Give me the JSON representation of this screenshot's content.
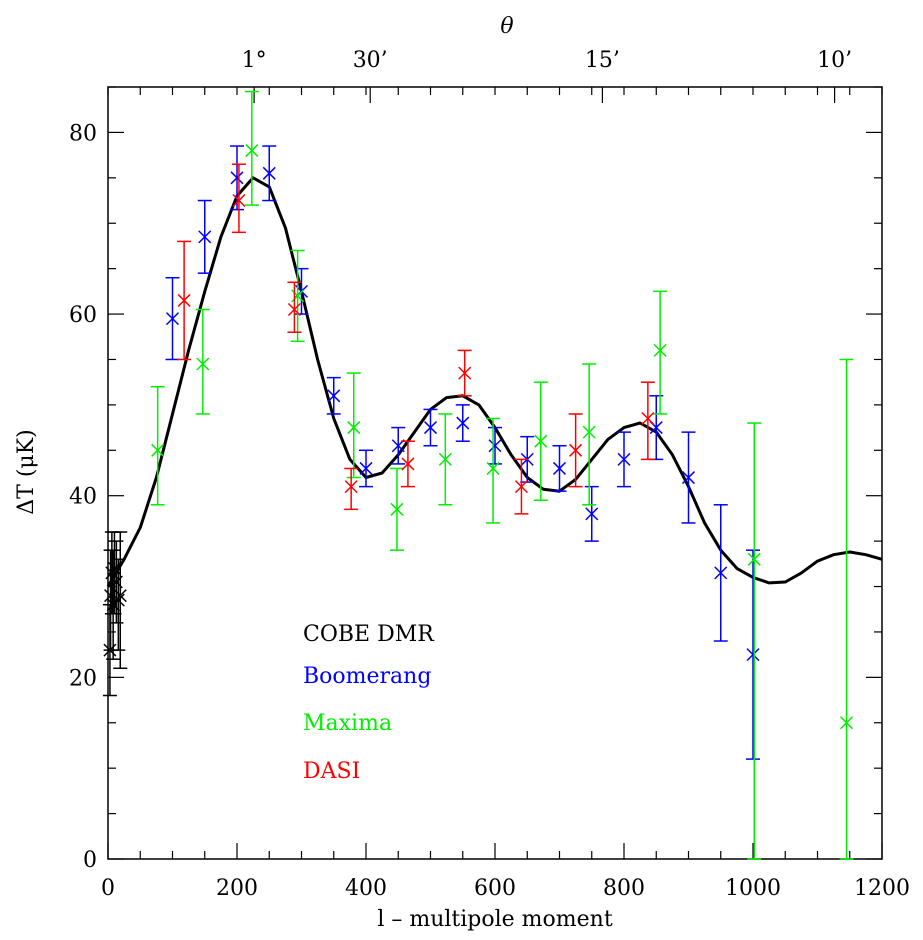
{
  "chart_data": {
    "type": "scatter",
    "xlabel": "l  – multipole moment",
    "ylabel": "ΔT (μK)",
    "top_axis_label": "θ",
    "xlim": [
      0,
      1200
    ],
    "ylim": [
      0,
      85
    ],
    "x_ticks": [
      0,
      200,
      400,
      600,
      800,
      1000,
      1200
    ],
    "x_tick_labels": [
      "0",
      "200",
      "400",
      "600",
      "800",
      "1000",
      "1200"
    ],
    "y_ticks": [
      0,
      20,
      40,
      60,
      80
    ],
    "y_tick_labels": [
      "0",
      "20",
      "40",
      "60",
      "80"
    ],
    "top_ticks": [
      {
        "label": "1°",
        "l": 180
      },
      {
        "label": "30’",
        "l": 360
      },
      {
        "label": "15’",
        "l": 720
      },
      {
        "label": "10’",
        "l": 1080
      }
    ],
    "grid": false,
    "legend_position": "lower-left",
    "series": [
      {
        "name": "COBE DMR",
        "color": "#000000",
        "points": [
          {
            "x": 3,
            "y": 23.0,
            "lo": 18.0,
            "hi": 28.0
          },
          {
            "x": 4,
            "y": 29.0,
            "lo": 23.0,
            "hi": 34.0
          },
          {
            "x": 6,
            "y": 31.5,
            "lo": 27.0,
            "hi": 36.0
          },
          {
            "x": 8,
            "y": 28.0,
            "lo": 22.0,
            "hi": 34.0
          },
          {
            "x": 10,
            "y": 32.0,
            "lo": 27.0,
            "hi": 36.0
          },
          {
            "x": 13,
            "y": 30.5,
            "lo": 26.0,
            "hi": 35.0
          },
          {
            "x": 16,
            "y": 28.5,
            "lo": 23.0,
            "hi": 33.0
          },
          {
            "x": 19,
            "y": 29.0,
            "lo": 21.0,
            "hi": 36.0
          }
        ]
      },
      {
        "name": "Boomerang",
        "color": "#0000ff",
        "points": [
          {
            "x": 100,
            "y": 59.5,
            "lo": 55.0,
            "hi": 64.0
          },
          {
            "x": 150,
            "y": 68.5,
            "lo": 64.5,
            "hi": 72.5
          },
          {
            "x": 200,
            "y": 75.0,
            "lo": 71.5,
            "hi": 78.5
          },
          {
            "x": 250,
            "y": 75.5,
            "lo": 72.5,
            "hi": 78.5
          },
          {
            "x": 300,
            "y": 62.5,
            "lo": 60.0,
            "hi": 65.0
          },
          {
            "x": 350,
            "y": 51.0,
            "lo": 49.0,
            "hi": 53.0
          },
          {
            "x": 400,
            "y": 43.0,
            "lo": 41.0,
            "hi": 45.0
          },
          {
            "x": 450,
            "y": 45.5,
            "lo": 43.5,
            "hi": 47.5
          },
          {
            "x": 500,
            "y": 47.5,
            "lo": 45.5,
            "hi": 49.5
          },
          {
            "x": 550,
            "y": 48.0,
            "lo": 46.0,
            "hi": 50.0
          },
          {
            "x": 600,
            "y": 45.5,
            "lo": 43.5,
            "hi": 47.5
          },
          {
            "x": 650,
            "y": 44.0,
            "lo": 41.5,
            "hi": 46.5
          },
          {
            "x": 700,
            "y": 43.0,
            "lo": 40.5,
            "hi": 45.5
          },
          {
            "x": 750,
            "y": 38.0,
            "lo": 35.0,
            "hi": 41.0
          },
          {
            "x": 800,
            "y": 44.0,
            "lo": 41.0,
            "hi": 47.0
          },
          {
            "x": 850,
            "y": 47.5,
            "lo": 44.0,
            "hi": 51.0
          },
          {
            "x": 900,
            "y": 42.0,
            "lo": 37.0,
            "hi": 47.0
          },
          {
            "x": 950,
            "y": 31.5,
            "lo": 24.0,
            "hi": 39.0
          },
          {
            "x": 1000,
            "y": 22.5,
            "lo": 11.0,
            "hi": 34.0
          }
        ]
      },
      {
        "name": "Maxima",
        "color": "#00ee00",
        "points": [
          {
            "x": 77,
            "y": 45.0,
            "lo": 39.0,
            "hi": 52.0
          },
          {
            "x": 147,
            "y": 54.5,
            "lo": 49.0,
            "hi": 60.5
          },
          {
            "x": 223,
            "y": 78.0,
            "lo": 72.0,
            "hi": 84.5
          },
          {
            "x": 294,
            "y": 62.0,
            "lo": 57.0,
            "hi": 67.0
          },
          {
            "x": 381,
            "y": 47.5,
            "lo": 42.0,
            "hi": 53.5
          },
          {
            "x": 448,
            "y": 38.5,
            "lo": 34.0,
            "hi": 43.0
          },
          {
            "x": 523,
            "y": 44.0,
            "lo": 39.0,
            "hi": 49.0
          },
          {
            "x": 597,
            "y": 43.0,
            "lo": 37.0,
            "hi": 48.5
          },
          {
            "x": 671,
            "y": 46.0,
            "lo": 39.5,
            "hi": 52.5
          },
          {
            "x": 746,
            "y": 47.0,
            "lo": 39.0,
            "hi": 54.5
          },
          {
            "x": 856,
            "y": 56.0,
            "lo": 49.0,
            "hi": 62.5
          },
          {
            "x": 1002,
            "y": 33.0,
            "lo": 0.0,
            "hi": 48.0
          },
          {
            "x": 1145,
            "y": 15.0,
            "lo": 0.0,
            "hi": 55.0
          }
        ]
      },
      {
        "name": "DASI",
        "color": "#ff0000",
        "points": [
          {
            "x": 118,
            "y": 61.5,
            "lo": 55.0,
            "hi": 68.0
          },
          {
            "x": 203,
            "y": 72.5,
            "lo": 69.0,
            "hi": 76.5
          },
          {
            "x": 289,
            "y": 60.5,
            "lo": 58.0,
            "hi": 63.5
          },
          {
            "x": 377,
            "y": 41.0,
            "lo": 38.5,
            "hi": 43.0
          },
          {
            "x": 465,
            "y": 43.5,
            "lo": 41.0,
            "hi": 46.0
          },
          {
            "x": 553,
            "y": 53.5,
            "lo": 51.0,
            "hi": 56.0
          },
          {
            "x": 641,
            "y": 41.0,
            "lo": 38.0,
            "hi": 44.0
          },
          {
            "x": 725,
            "y": 45.0,
            "lo": 41.0,
            "hi": 49.0
          },
          {
            "x": 837,
            "y": 48.5,
            "lo": 44.0,
            "hi": 52.5
          }
        ]
      }
    ],
    "model_curve": [
      [
        0,
        30.0
      ],
      [
        25,
        33.0
      ],
      [
        50,
        36.5
      ],
      [
        75,
        42.0
      ],
      [
        100,
        49.0
      ],
      [
        125,
        56.0
      ],
      [
        150,
        62.5
      ],
      [
        175,
        68.5
      ],
      [
        200,
        73.0
      ],
      [
        225,
        75.0
      ],
      [
        250,
        74.0
      ],
      [
        275,
        69.5
      ],
      [
        300,
        62.5
      ],
      [
        325,
        55.0
      ],
      [
        350,
        48.5
      ],
      [
        375,
        44.0
      ],
      [
        400,
        42.0
      ],
      [
        425,
        42.5
      ],
      [
        450,
        44.5
      ],
      [
        475,
        47.0
      ],
      [
        500,
        49.5
      ],
      [
        525,
        50.8
      ],
      [
        550,
        51.0
      ],
      [
        575,
        50.0
      ],
      [
        600,
        47.5
      ],
      [
        625,
        44.5
      ],
      [
        650,
        42.0
      ],
      [
        675,
        40.7
      ],
      [
        700,
        40.5
      ],
      [
        725,
        41.8
      ],
      [
        750,
        44.0
      ],
      [
        775,
        46.2
      ],
      [
        800,
        47.5
      ],
      [
        825,
        48.0
      ],
      [
        850,
        47.0
      ],
      [
        875,
        44.5
      ],
      [
        900,
        41.0
      ],
      [
        925,
        37.0
      ],
      [
        950,
        34.0
      ],
      [
        975,
        32.0
      ],
      [
        1000,
        31.0
      ],
      [
        1025,
        30.4
      ],
      [
        1050,
        30.5
      ],
      [
        1075,
        31.5
      ],
      [
        1100,
        32.8
      ],
      [
        1125,
        33.5
      ],
      [
        1150,
        33.8
      ],
      [
        1175,
        33.5
      ],
      [
        1200,
        33.0
      ]
    ]
  }
}
